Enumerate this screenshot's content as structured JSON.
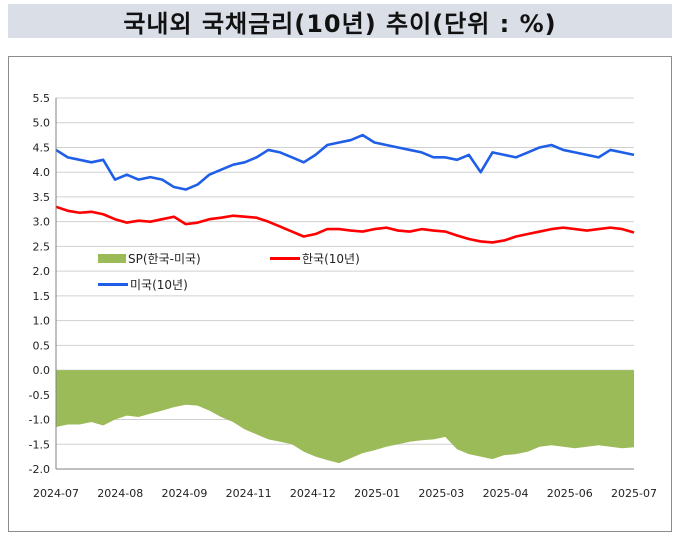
{
  "title": "국내외 국채금리(10년) 추이(단위 : %)",
  "colors": {
    "sp": "#9bbb59",
    "korea": "#ff0000",
    "us": "#1f5fe8",
    "grid": "#d0d0d0"
  },
  "chart_data": {
    "type": "line",
    "title": "국내외 국채금리(10년) 추이(단위 : %)",
    "xlabel": "",
    "ylabel": "",
    "ylim": [
      -2.0,
      5.5
    ],
    "yticks": [
      "5.5",
      "5.0",
      "4.5",
      "4.0",
      "3.5",
      "3.0",
      "2.5",
      "2.0",
      "1.5",
      "1.0",
      "0.5",
      "0.0",
      "-0.5",
      "-1.0",
      "-1.5",
      "-2.0"
    ],
    "x_tick_labels": [
      "2024-07",
      "2024-08",
      "2024-09",
      "2024-11",
      "2024-12",
      "2025-01",
      "2025-03",
      "2025-04",
      "2025-06",
      "2025-07"
    ],
    "grid": true,
    "legend": "upper-left inside plot",
    "series": [
      {
        "name": "SP(한국-미국)",
        "kind": "area",
        "values": [
          -1.15,
          -1.1,
          -1.1,
          -1.05,
          -1.12,
          -1.0,
          -0.92,
          -0.95,
          -0.88,
          -0.82,
          -0.75,
          -0.7,
          -0.72,
          -0.82,
          -0.95,
          -1.05,
          -1.2,
          -1.3,
          -1.4,
          -1.45,
          -1.5,
          -1.65,
          -1.75,
          -1.82,
          -1.88,
          -1.78,
          -1.68,
          -1.62,
          -1.55,
          -1.5,
          -1.45,
          -1.42,
          -1.4,
          -1.35,
          -1.6,
          -1.7,
          -1.75,
          -1.8,
          -1.72,
          -1.7,
          -1.65,
          -1.55,
          -1.52,
          -1.55,
          -1.58,
          -1.55,
          -1.52,
          -1.55,
          -1.58,
          -1.56
        ]
      },
      {
        "name": "한국(10년)",
        "kind": "line",
        "values": [
          3.3,
          3.22,
          3.18,
          3.2,
          3.15,
          3.05,
          2.98,
          3.02,
          3.0,
          3.05,
          3.1,
          2.95,
          2.98,
          3.05,
          3.08,
          3.12,
          3.1,
          3.08,
          3.0,
          2.9,
          2.8,
          2.7,
          2.75,
          2.85,
          2.85,
          2.82,
          2.8,
          2.85,
          2.88,
          2.82,
          2.8,
          2.85,
          2.82,
          2.8,
          2.72,
          2.65,
          2.6,
          2.58,
          2.62,
          2.7,
          2.75,
          2.8,
          2.85,
          2.88,
          2.85,
          2.82,
          2.85,
          2.88,
          2.85,
          2.78
        ]
      },
      {
        "name": "미국(10년)",
        "kind": "line",
        "values": [
          4.45,
          4.3,
          4.25,
          4.2,
          4.25,
          3.85,
          3.95,
          3.85,
          3.9,
          3.85,
          3.7,
          3.65,
          3.75,
          3.95,
          4.05,
          4.15,
          4.2,
          4.3,
          4.45,
          4.4,
          4.3,
          4.2,
          4.35,
          4.55,
          4.6,
          4.65,
          4.75,
          4.6,
          4.55,
          4.5,
          4.45,
          4.4,
          4.3,
          4.3,
          4.25,
          4.35,
          4.0,
          4.4,
          4.35,
          4.3,
          4.4,
          4.5,
          4.55,
          4.45,
          4.4,
          4.35,
          4.3,
          4.45,
          4.4,
          4.35
        ]
      }
    ]
  }
}
